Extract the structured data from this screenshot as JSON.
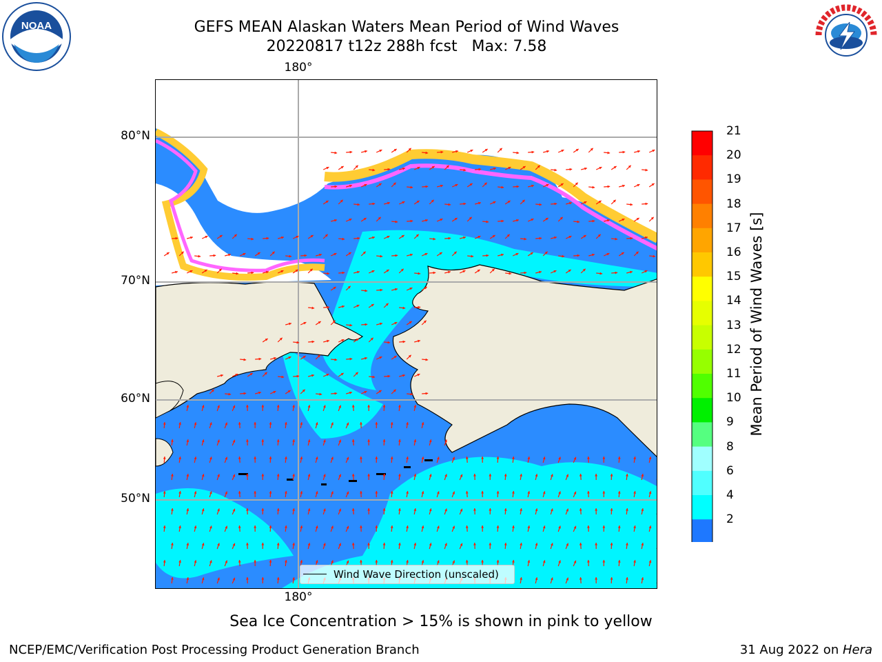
{
  "title": {
    "line1": "GEFS MEAN Alaskan Waters Mean Period of Wind Waves",
    "line2": "20220817 t12z 288h fcst   Max: 7.58"
  },
  "logos": {
    "noaa": {
      "text": "NOAA",
      "ring_text": "NATIONAL OCEANIC AND ATMOSPHERIC ADMINISTRATION · U.S. DEPARTMENT OF COMMERCE",
      "color": "#1a4f9c"
    },
    "nws": {
      "ring_text": "NATIONAL WEATHER SERVICE",
      "color": "#e0252b"
    }
  },
  "map": {
    "lon_label_top": "180°",
    "lon_label_bottom": "180°",
    "lat_labels": [
      "80°N",
      "70°N",
      "60°N",
      "50°N"
    ],
    "legend": "Wind Wave Direction (unscaled)",
    "colors": {
      "land": "#efecdc",
      "ice_free_white": "#ffffff",
      "ocean_dark": "#2b8cff",
      "ocean_light": "#00f5ff",
      "arrow": "#ff1a00"
    }
  },
  "colorbar": {
    "label": "Mean Period of Wind Waves [s]",
    "ticks": [
      "21",
      "20",
      "19",
      "18",
      "17",
      "16",
      "15",
      "14",
      "13",
      "12",
      "11",
      "10",
      "9",
      "8",
      "6",
      "4",
      "2"
    ],
    "colors_top_to_bottom": [
      "#ff0000",
      "#ff2a00",
      "#ff5500",
      "#ff8000",
      "#ffa500",
      "#ffc800",
      "#ffff00",
      "#e6ff00",
      "#c8ff00",
      "#96ff00",
      "#50ff00",
      "#00f000",
      "#55ff80",
      "#a0ffff",
      "#50ffff",
      "#00ffff",
      "#1e78ff"
    ],
    "under_color": "#0a00ff"
  },
  "sea_ice_note": "Sea Ice Concentration > 15% is shown in pink to yellow",
  "footer": {
    "left": "NCEP/EMC/Verification Post Processing Product Generation Branch",
    "right_date": "31 Aug 2022 on ",
    "right_machine": "Hera"
  }
}
